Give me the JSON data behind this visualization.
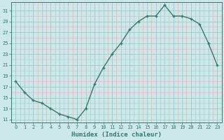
{
  "x": [
    0,
    1,
    2,
    3,
    4,
    5,
    6,
    7,
    8,
    9,
    10,
    11,
    12,
    13,
    14,
    15,
    16,
    17,
    18,
    19,
    20,
    21,
    22,
    23
  ],
  "y": [
    18,
    16,
    14.5,
    14,
    13,
    12,
    11.5,
    11,
    13,
    17.5,
    20.5,
    23,
    25,
    27.5,
    29,
    30,
    30,
    32,
    30,
    30,
    29.5,
    28.5,
    25,
    21
  ],
  "line_color": "#2e7d6e",
  "marker_color": "#2e7d6e",
  "bg_color": "#cce8e8",
  "grid_color_major": "#aacccc",
  "grid_color_minor": "#ddbbbb",
  "xlabel": "Humidex (Indice chaleur)",
  "yticks": [
    11,
    13,
    15,
    17,
    19,
    21,
    23,
    25,
    27,
    29,
    31
  ],
  "xticks": [
    0,
    1,
    2,
    3,
    4,
    5,
    6,
    7,
    8,
    9,
    10,
    11,
    12,
    13,
    14,
    15,
    16,
    17,
    18,
    19,
    20,
    21,
    22,
    23
  ],
  "ylim": [
    10.5,
    32.5
  ],
  "xlim": [
    -0.5,
    23.5
  ],
  "font_color": "#2e7d6e",
  "font_family": "monospace",
  "tick_fontsize": 5.0,
  "xlabel_fontsize": 6.5
}
